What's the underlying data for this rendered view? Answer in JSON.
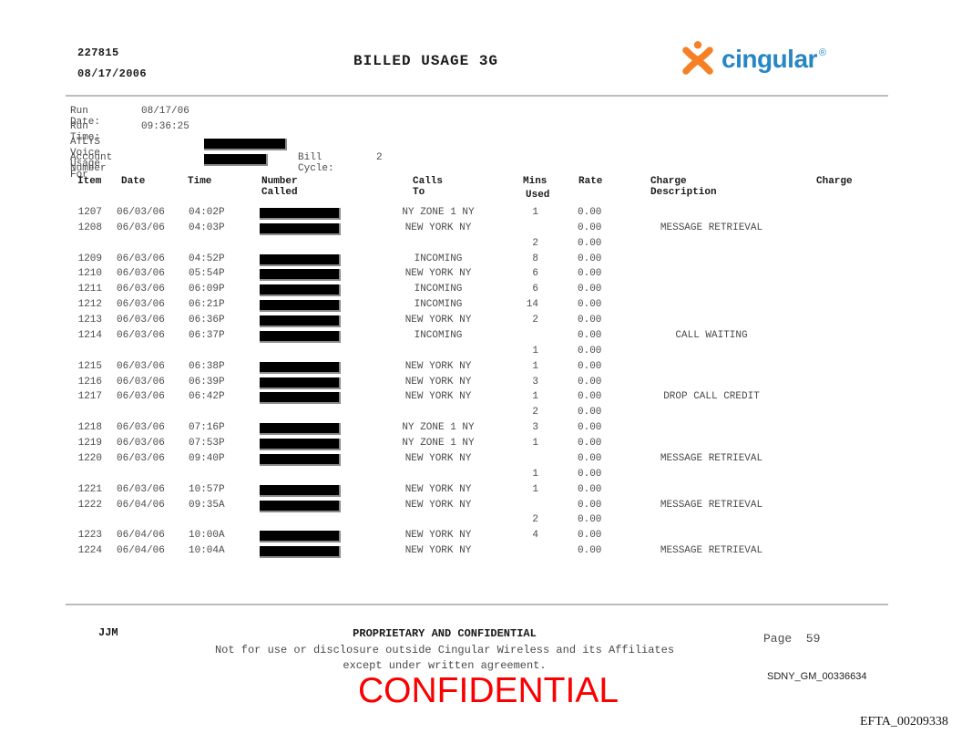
{
  "header": {
    "doc_number": "227815",
    "doc_date": "08/17/2006",
    "title": "BILLED USAGE 3G",
    "logo": {
      "brand": "cingular",
      "registered": "®",
      "orange": "#F58025",
      "blue": "#2787C4",
      "icon": "cingular-jack-icon"
    }
  },
  "meta": {
    "run_date_label": "Run Date:",
    "run_date": "08/17/06",
    "run_time_label": "Run Time:",
    "run_time": "09:36:25",
    "usage_for_label": "ATLYS Voice Usage For",
    "account_label": "Account Number",
    "bill_cycle_label": "Bill Cycle:",
    "bill_cycle": "2"
  },
  "table": {
    "headers": {
      "item": "Item",
      "date": "Date",
      "time": "Time",
      "number_called": "Number Called",
      "calls_to": "Calls To",
      "mins_line1": "Mins",
      "mins_line2": "Used",
      "rate": "Rate",
      "charge_description": "Charge Description",
      "charge": "Charge"
    },
    "rows": [
      {
        "item": "1207",
        "date": "06/03/06",
        "time": "04:02P",
        "redacted": true,
        "calls_to": "NY ZONE 1 NY",
        "mins": "1",
        "rate": "0.00",
        "desc": "",
        "charge": ""
      },
      {
        "item": "1208",
        "date": "06/03/06",
        "time": "04:03P",
        "redacted": true,
        "calls_to": "NEW YORK NY",
        "mins": "",
        "rate": "0.00",
        "desc": "MESSAGE RETRIEVAL",
        "charge": ""
      },
      {
        "item": "",
        "date": "",
        "time": "",
        "redacted": false,
        "calls_to": "",
        "mins": "2",
        "rate": "0.00",
        "desc": "",
        "charge": ""
      },
      {
        "item": "1209",
        "date": "06/03/06",
        "time": "04:52P",
        "redacted": true,
        "calls_to": "INCOMING",
        "mins": "8",
        "rate": "0.00",
        "desc": "",
        "charge": ""
      },
      {
        "item": "1210",
        "date": "06/03/06",
        "time": "05:54P",
        "redacted": true,
        "calls_to": "NEW YORK NY",
        "mins": "6",
        "rate": "0.00",
        "desc": "",
        "charge": ""
      },
      {
        "item": "1211",
        "date": "06/03/06",
        "time": "06:09P",
        "redacted": true,
        "calls_to": "INCOMING",
        "mins": "6",
        "rate": "0.00",
        "desc": "",
        "charge": ""
      },
      {
        "item": "1212",
        "date": "06/03/06",
        "time": "06:21P",
        "redacted": true,
        "calls_to": "INCOMING",
        "mins": "14",
        "rate": "0.00",
        "desc": "",
        "charge": ""
      },
      {
        "item": "1213",
        "date": "06/03/06",
        "time": "06:36P",
        "redacted": true,
        "calls_to": "NEW YORK NY",
        "mins": "2",
        "rate": "0.00",
        "desc": "",
        "charge": ""
      },
      {
        "item": "1214",
        "date": "06/03/06",
        "time": "06:37P",
        "redacted": true,
        "calls_to": "INCOMING",
        "mins": "",
        "rate": "0.00",
        "desc": "CALL WAITING",
        "charge": ""
      },
      {
        "item": "",
        "date": "",
        "time": "",
        "redacted": false,
        "calls_to": "",
        "mins": "1",
        "rate": "0.00",
        "desc": "",
        "charge": ""
      },
      {
        "item": "1215",
        "date": "06/03/06",
        "time": "06:38P",
        "redacted": true,
        "calls_to": "NEW YORK NY",
        "mins": "1",
        "rate": "0.00",
        "desc": "",
        "charge": ""
      },
      {
        "item": "1216",
        "date": "06/03/06",
        "time": "06:39P",
        "redacted": true,
        "calls_to": "NEW YORK NY",
        "mins": "3",
        "rate": "0.00",
        "desc": "",
        "charge": ""
      },
      {
        "item": "1217",
        "date": "06/03/06",
        "time": "06:42P",
        "redacted": true,
        "calls_to": "NEW YORK NY",
        "mins": "1",
        "rate": "0.00",
        "desc": "DROP CALL CREDIT",
        "charge": ""
      },
      {
        "item": "",
        "date": "",
        "time": "",
        "redacted": false,
        "calls_to": "",
        "mins": "2",
        "rate": "0.00",
        "desc": "",
        "charge": ""
      },
      {
        "item": "1218",
        "date": "06/03/06",
        "time": "07:16P",
        "redacted": true,
        "calls_to": "NY ZONE 1 NY",
        "mins": "3",
        "rate": "0.00",
        "desc": "",
        "charge": ""
      },
      {
        "item": "1219",
        "date": "06/03/06",
        "time": "07:53P",
        "redacted": true,
        "calls_to": "NY ZONE 1 NY",
        "mins": "1",
        "rate": "0.00",
        "desc": "",
        "charge": ""
      },
      {
        "item": "1220",
        "date": "06/03/06",
        "time": "09:40P",
        "redacted": true,
        "calls_to": "NEW YORK NY",
        "mins": "",
        "rate": "0.00",
        "desc": "MESSAGE RETRIEVAL",
        "charge": ""
      },
      {
        "item": "",
        "date": "",
        "time": "",
        "redacted": false,
        "calls_to": "",
        "mins": "1",
        "rate": "0.00",
        "desc": "",
        "charge": ""
      },
      {
        "item": "1221",
        "date": "06/03/06",
        "time": "10:57P",
        "redacted": true,
        "calls_to": "NEW YORK NY",
        "mins": "1",
        "rate": "0.00",
        "desc": "",
        "charge": ""
      },
      {
        "item": "1222",
        "date": "06/04/06",
        "time": "09:35A",
        "redacted": true,
        "calls_to": "NEW YORK NY",
        "mins": "",
        "rate": "0.00",
        "desc": "MESSAGE RETRIEVAL",
        "charge": ""
      },
      {
        "item": "",
        "date": "",
        "time": "",
        "redacted": false,
        "calls_to": "",
        "mins": "2",
        "rate": "0.00",
        "desc": "",
        "charge": ""
      },
      {
        "item": "1223",
        "date": "06/04/06",
        "time": "10:00A",
        "redacted": true,
        "calls_to": "NEW YORK NY",
        "mins": "4",
        "rate": "0.00",
        "desc": "",
        "charge": ""
      },
      {
        "item": "1224",
        "date": "06/04/06",
        "time": "10:04A",
        "redacted": true,
        "calls_to": "NEW YORK NY",
        "mins": "",
        "rate": "0.00",
        "desc": "MESSAGE RETRIEVAL",
        "charge": ""
      }
    ]
  },
  "footer": {
    "initials": "JJM",
    "line1": "PROPRIETARY AND CONFIDENTIAL",
    "line2": "Not for use or disclosure outside Cingular Wireless and its Affiliates",
    "line3": "except under written agreement.",
    "page_label": "Page  59"
  },
  "stamps": {
    "bates_sdny": "SDNY_GM_00336634",
    "confidential": "CONFIDENTIAL",
    "confidential_color": "#fa0000",
    "bates_efta": "EFTA_00209338"
  }
}
